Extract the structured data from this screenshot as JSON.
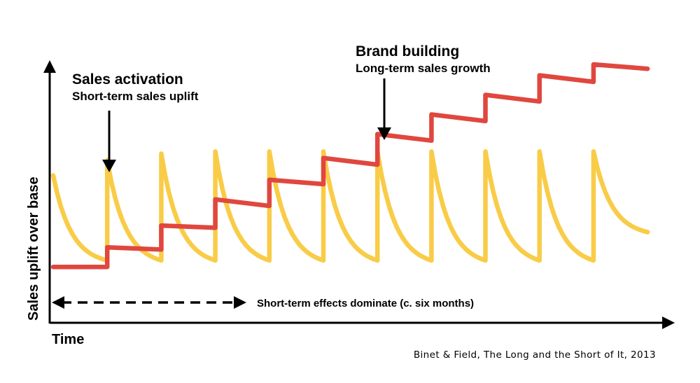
{
  "chart_data": {
    "type": "line",
    "title": "",
    "xlabel": "Time",
    "ylabel": "Sales uplift over base",
    "xlim": [
      0,
      11.4
    ],
    "ylim": [
      0,
      10
    ],
    "grid": false,
    "series": [
      {
        "name": "Sales activation (short-term uplift)",
        "color": "#F9CC48",
        "points": [
          [
            0,
            4.9
          ],
          [
            1,
            1.0
          ],
          [
            1,
            5.6
          ],
          [
            2,
            1.0
          ],
          [
            2,
            5.9
          ],
          [
            3,
            1.0
          ],
          [
            3,
            6.0
          ],
          [
            4,
            1.0
          ],
          [
            4,
            6.0
          ],
          [
            5,
            1.0
          ],
          [
            5,
            6.0
          ],
          [
            6,
            1.0
          ],
          [
            6,
            6.0
          ],
          [
            7,
            1.0
          ],
          [
            7,
            6.0
          ],
          [
            8,
            1.0
          ],
          [
            8,
            6.0
          ],
          [
            9,
            1.0
          ],
          [
            9,
            6.0
          ],
          [
            10,
            1.0
          ],
          [
            10,
            6.0
          ],
          [
            11.0,
            2.3
          ]
        ]
      },
      {
        "name": "Brand building (long-term sales growth)",
        "color": "#E0473E",
        "points": [
          [
            0,
            0.7
          ],
          [
            1,
            0.7
          ],
          [
            1,
            1.6
          ],
          [
            2,
            1.5
          ],
          [
            2,
            2.6
          ],
          [
            3,
            2.5
          ],
          [
            3,
            3.8
          ],
          [
            4,
            3.5
          ],
          [
            4,
            4.7
          ],
          [
            5,
            4.5
          ],
          [
            5,
            5.7
          ],
          [
            6,
            5.4
          ],
          [
            6,
            6.8
          ],
          [
            7,
            6.5
          ],
          [
            7,
            7.7
          ],
          [
            8,
            7.4
          ],
          [
            8,
            8.6
          ],
          [
            9,
            8.3
          ],
          [
            9,
            9.5
          ],
          [
            10,
            9.2
          ],
          [
            10,
            10.0
          ],
          [
            11.0,
            9.8
          ]
        ]
      }
    ],
    "annotations": [
      {
        "id": "sales",
        "title": "Sales activation",
        "subtitle": "Short-term sales uplift"
      },
      {
        "id": "brand",
        "title": "Brand building",
        "subtitle": "Long-term sales growth"
      },
      {
        "id": "short",
        "text": "Short-term effects dominate (c. six months)"
      }
    ],
    "source": "Binet & Field, The Long and the Short of It, 2013"
  }
}
